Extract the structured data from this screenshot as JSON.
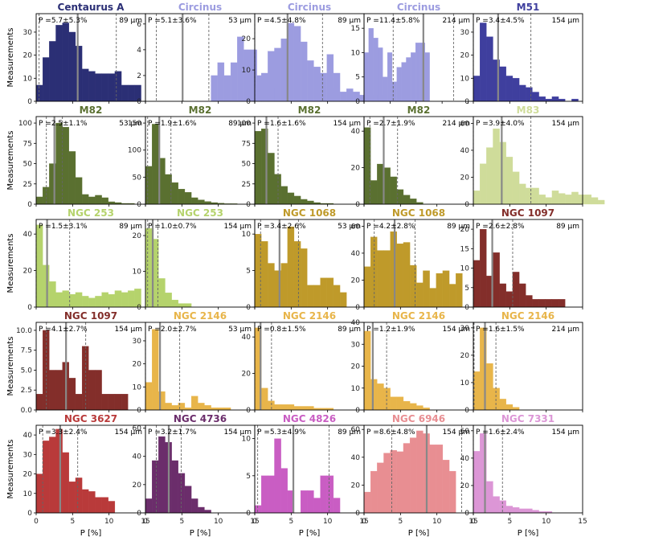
{
  "figure": {
    "xlabel": "P [%]",
    "ylabel": "Measurements"
  },
  "colors": {
    "Centaurus A": "#2b2f75",
    "Circinus": "#9c9ce0",
    "M51": "#3f3f9e",
    "M82": "#5a7030",
    "M83": "#cfdc9a",
    "NGC 253": "#b5d36c",
    "NGC 1068": "#bf9a2a",
    "NGC 1097": "#832e2a",
    "NGC 2146": "#e8b54a",
    "NGC 3627": "#b93a3a",
    "NGC 4736": "#6b2d6b",
    "NGC 4826": "#c95dc3",
    "NGC 6946": "#e88e92",
    "NGC 7331": "#dc96d6"
  },
  "chart_data": [
    {
      "type": "bar",
      "title": "Centaurus A",
      "annotation": "P =5.7±5.3%",
      "band": "89 μm",
      "mean": 5.7,
      "lo": 0.4,
      "hi": 11.0,
      "xlim": [
        0,
        15
      ],
      "ylim": [
        0,
        38
      ],
      "yticks": [
        0,
        10,
        20,
        30
      ],
      "values": [
        7,
        19,
        26,
        33,
        34,
        30,
        24,
        14,
        13,
        12,
        12,
        12,
        13,
        7,
        7,
        7
      ]
    },
    {
      "type": "bar",
      "title": "Circinus",
      "annotation": "P =5.1±3.6%",
      "band": "53 μm",
      "mean": 5.1,
      "lo": 1.5,
      "hi": 8.7,
      "xlim": [
        0,
        15
      ],
      "ylim": [
        0,
        6.8
      ],
      "yticks": [
        0,
        2,
        4,
        6
      ],
      "values": [
        0,
        0,
        0,
        0,
        0,
        0,
        0,
        0,
        0,
        0,
        2,
        3,
        2,
        3,
        5,
        4,
        4,
        2,
        1,
        1,
        0,
        0,
        0,
        0,
        0,
        0,
        0,
        0,
        1,
        0
      ]
    },
    {
      "type": "bar",
      "title": "Circinus",
      "annotation": "P =4.5±4.8%",
      "band": "89 μm",
      "mean": 4.5,
      "lo": 0.0,
      "hi": 9.3,
      "xlim": [
        0,
        15
      ],
      "ylim": [
        0,
        28
      ],
      "yticks": [
        0,
        10,
        20
      ],
      "values": [
        5,
        9,
        16,
        17,
        20,
        25,
        24,
        19,
        13,
        11,
        9,
        15,
        9,
        3,
        4,
        3,
        2,
        2,
        2,
        2
      ]
    },
    {
      "type": "bar",
      "title": "Circinus",
      "annotation": "P =11.4±5.8%",
      "band": "214 μm",
      "mean": 11.4,
      "lo": 5.6,
      "hi": 17.2,
      "xlim": [
        0,
        21
      ],
      "ylim": [
        0,
        18
      ],
      "yticks": [
        0,
        5,
        10,
        15
      ],
      "values": [
        10,
        15,
        13,
        11,
        5,
        10,
        4,
        7,
        8,
        9,
        10,
        12,
        12,
        10
      ]
    },
    {
      "type": "bar",
      "title": "M51",
      "annotation": "P =3.4±4.5%",
      "band": "154 μm",
      "mean": 3.4,
      "lo": 0.0,
      "hi": 7.9,
      "xlim": [
        0,
        15
      ],
      "ylim": [
        0,
        38
      ],
      "yticks": [
        0,
        10,
        20,
        30
      ],
      "values": [
        11,
        34,
        28,
        18,
        15,
        11,
        10,
        7,
        6,
        4,
        2,
        1,
        2,
        1,
        0,
        1,
        0,
        0
      ]
    },
    {
      "type": "bar",
      "title": "M82",
      "annotation": "P =2.5±1.1%",
      "band": "53 μm",
      "mean": 2.5,
      "lo": 1.4,
      "hi": 3.6,
      "xlim": [
        0,
        15
      ],
      "ylim": [
        0,
        108
      ],
      "yticks": [
        0,
        25,
        50,
        75,
        100
      ],
      "values": [
        9,
        21,
        50,
        100,
        95,
        65,
        33,
        12,
        9,
        11,
        8,
        3,
        2,
        1,
        1
      ]
    },
    {
      "type": "bar",
      "title": "M82",
      "annotation": "P =1.9±1.6%",
      "band": "89 μm",
      "mean": 1.9,
      "lo": 0.3,
      "hi": 3.5,
      "xlim": [
        0,
        15
      ],
      "ylim": [
        0,
        162
      ],
      "yticks": [
        0,
        50,
        100,
        150
      ],
      "values": [
        70,
        148,
        85,
        55,
        40,
        28,
        22,
        12,
        8,
        5,
        3,
        2,
        1,
        1
      ]
    },
    {
      "type": "bar",
      "title": "M82",
      "annotation": "P =1.6±1.6%",
      "band": "154 μm",
      "mean": 1.6,
      "lo": 0.0,
      "hi": 3.2,
      "xlim": [
        0,
        15
      ],
      "ylim": [
        0,
        108
      ],
      "yticks": [
        0,
        25,
        50,
        75,
        100
      ],
      "values": [
        90,
        93,
        63,
        37,
        22,
        14,
        10,
        6,
        4,
        2,
        1,
        1
      ]
    },
    {
      "type": "bar",
      "title": "M82",
      "annotation": "P =2.7±1.9%",
      "band": "214 μm",
      "mean": 2.7,
      "lo": 0.8,
      "hi": 4.6,
      "xlim": [
        0,
        15
      ],
      "ylim": [
        0,
        48
      ],
      "yticks": [
        0,
        20,
        40
      ],
      "values": [
        42,
        13,
        22,
        20,
        15,
        8,
        5,
        3,
        1
      ]
    },
    {
      "type": "bar",
      "title": "M83",
      "annotation": "P =3.9±4.0%",
      "band": "154 μm",
      "mean": 3.9,
      "lo": 0.0,
      "hi": 7.9,
      "xlim": [
        0,
        15
      ],
      "ylim": [
        0,
        65
      ],
      "yticks": [
        0,
        20,
        40,
        60
      ],
      "values": [
        10,
        30,
        42,
        56,
        46,
        35,
        24,
        15,
        12,
        12,
        7,
        5,
        10,
        8,
        7,
        9,
        7,
        7,
        5,
        3
      ]
    },
    {
      "type": "bar",
      "title": "NGC 253",
      "annotation": "P =1.5±3.1%",
      "band": "89 μm",
      "mean": 1.5,
      "lo": 0.0,
      "hi": 4.6,
      "xlim": [
        0,
        15
      ],
      "ylim": [
        0,
        48
      ],
      "yticks": [
        0,
        20,
        40
      ],
      "values": [
        45,
        23,
        14,
        8,
        9,
        7,
        8,
        6,
        5,
        6,
        8,
        7,
        9,
        8,
        9,
        10
      ]
    },
    {
      "type": "bar",
      "title": "NGC 253",
      "annotation": "P =1.0±0.7%",
      "band": "154 μm",
      "mean": 1.0,
      "lo": 0.3,
      "hi": 1.7,
      "xlim": [
        0,
        15
      ],
      "ylim": [
        0,
        24.5
      ],
      "yticks": [
        0,
        10,
        20
      ],
      "values": [
        22,
        19,
        8,
        4,
        2,
        1,
        1
      ]
    },
    {
      "type": "bar",
      "title": "NGC 1068",
      "annotation": "P =3.4±2.6%",
      "band": "53 μm",
      "mean": 3.4,
      "lo": 0.8,
      "hi": 6.0,
      "xlim": [
        0,
        15
      ],
      "ylim": [
        0,
        12
      ],
      "yticks": [
        0,
        5,
        10
      ],
      "values": [
        10,
        9,
        6,
        5,
        6,
        11,
        9,
        8,
        3,
        3,
        4,
        4,
        3,
        2
      ]
    },
    {
      "type": "bar",
      "title": "NGC 1068",
      "annotation": "P =4.2±2.8%",
      "band": "89 μm",
      "mean": 4.2,
      "lo": 1.4,
      "hi": 7.0,
      "xlim": [
        0,
        15
      ],
      "ylim": [
        0,
        65
      ],
      "yticks": [
        0,
        20,
        40,
        60
      ],
      "values": [
        30,
        52,
        42,
        42,
        56,
        47,
        48,
        31,
        18,
        27,
        14,
        25,
        27,
        17,
        25
      ]
    },
    {
      "type": "bar",
      "title": "NGC 1097",
      "annotation": "P =2.6±2.8%",
      "band": "89 μm",
      "mean": 2.6,
      "lo": 0.0,
      "hi": 5.4,
      "xlim": [
        0,
        15
      ],
      "ylim": [
        0,
        22.5
      ],
      "yticks": [
        0,
        5,
        10,
        15,
        20
      ],
      "values": [
        12,
        20,
        8,
        14,
        6,
        4,
        9,
        6,
        3,
        2,
        2,
        2,
        2,
        2
      ]
    },
    {
      "type": "bar",
      "title": "NGC 1097",
      "annotation": "P =4.1±2.7%",
      "band": "154 μm",
      "mean": 4.1,
      "lo": 1.4,
      "hi": 6.8,
      "xlim": [
        0,
        15
      ],
      "ylim": [
        0,
        11
      ],
      "yticks": [
        0,
        2.5,
        5.0,
        7.5,
        10.0
      ],
      "values": [
        2,
        10,
        5,
        5,
        6,
        4,
        2,
        8,
        5,
        5,
        2,
        2,
        2,
        2
      ]
    },
    {
      "type": "bar",
      "title": "NGC 2146",
      "annotation": "P =2.0±2.7%",
      "band": "53 μm",
      "mean": 2.0,
      "lo": 0.0,
      "hi": 4.7,
      "xlim": [
        0,
        15
      ],
      "ylim": [
        0,
        38
      ],
      "yticks": [
        0,
        10,
        20,
        30
      ],
      "values": [
        12,
        35,
        8,
        3,
        2,
        3,
        1,
        6,
        3,
        2,
        1,
        1,
        1
      ]
    },
    {
      "type": "bar",
      "title": "NGC 2146",
      "annotation": "P =0.8±1.5%",
      "band": "89 μm",
      "mean": 0.8,
      "lo": 0.0,
      "hi": 2.3,
      "xlim": [
        0,
        15
      ],
      "ylim": [
        0,
        48
      ],
      "yticks": [
        0,
        20,
        40
      ],
      "values": [
        45,
        12,
        5,
        3,
        3,
        3,
        2,
        2,
        2,
        1,
        1,
        1
      ]
    },
    {
      "type": "bar",
      "title": "NGC 2146",
      "annotation": "P =1.2±1.9%",
      "band": "154 μm",
      "mean": 1.2,
      "lo": 0.0,
      "hi": 3.1,
      "xlim": [
        0,
        15
      ],
      "ylim": [
        0,
        40
      ],
      "yticks": [
        0,
        10,
        20,
        30,
        40
      ],
      "values": [
        36,
        14,
        12,
        10,
        6,
        6,
        4,
        3,
        2,
        1
      ]
    },
    {
      "type": "bar",
      "title": "NGC 2146",
      "annotation": "P =1.6±1.5%",
      "band": "214 μm",
      "mean": 1.6,
      "lo": 0.1,
      "hi": 3.1,
      "xlim": [
        0,
        15
      ],
      "ylim": [
        0,
        32
      ],
      "yticks": [
        0,
        10,
        20,
        30
      ],
      "values": [
        14,
        30,
        17,
        8,
        4,
        2,
        1
      ]
    },
    {
      "type": "bar",
      "title": "NGC 3627",
      "annotation": "P =3.3±2.4%",
      "band": "154 μm",
      "mean": 3.3,
      "lo": 0.9,
      "hi": 5.7,
      "xlim": [
        0,
        15
      ],
      "ylim": [
        0,
        45
      ],
      "yticks": [
        0,
        10,
        20,
        30,
        40
      ],
      "values": [
        20,
        37,
        39,
        43,
        31,
        16,
        18,
        12,
        11,
        8,
        8,
        6
      ]
    },
    {
      "type": "bar",
      "title": "NGC 4736",
      "annotation": "P =3.2±1.7%",
      "band": "154 μm",
      "mean": 3.2,
      "lo": 1.5,
      "hi": 4.9,
      "xlim": [
        0,
        15
      ],
      "ylim": [
        0,
        62
      ],
      "yticks": [
        0,
        20,
        40,
        60
      ],
      "values": [
        10,
        37,
        54,
        50,
        37,
        28,
        19,
        10,
        4,
        2
      ]
    },
    {
      "type": "bar",
      "title": "NGC 4826",
      "annotation": "P =5.3±4.9%",
      "band": "89 μm",
      "mean": 5.3,
      "lo": 0.4,
      "hi": 10.2,
      "xlim": [
        0,
        15
      ],
      "ylim": [
        0,
        11.8
      ],
      "yticks": [
        0,
        5,
        10
      ],
      "values": [
        1,
        5,
        5,
        10,
        6,
        3,
        0,
        3,
        3,
        2,
        5,
        5,
        2
      ]
    },
    {
      "type": "bar",
      "title": "NGC 6946",
      "annotation": "P =8.6±4.8%",
      "band": "154 μm",
      "mean": 8.6,
      "lo": 3.8,
      "hi": 13.4,
      "xlim": [
        0,
        15
      ],
      "ylim": [
        0,
        63
      ],
      "yticks": [
        0,
        20,
        40,
        60
      ],
      "values": [
        15,
        30,
        36,
        43,
        45,
        44,
        50,
        54,
        59,
        57,
        49,
        49,
        38,
        30
      ]
    },
    {
      "type": "bar",
      "title": "NGC 7331",
      "annotation": "P =1.6±2.4%",
      "band": "154 μm",
      "mean": 1.6,
      "lo": 0.0,
      "hi": 4.0,
      "xlim": [
        0,
        15
      ],
      "ylim": [
        0,
        64
      ],
      "yticks": [
        0,
        20,
        40,
        60
      ],
      "values": [
        45,
        58,
        23,
        12,
        9,
        5,
        4,
        3,
        3,
        2,
        1,
        1
      ]
    }
  ]
}
